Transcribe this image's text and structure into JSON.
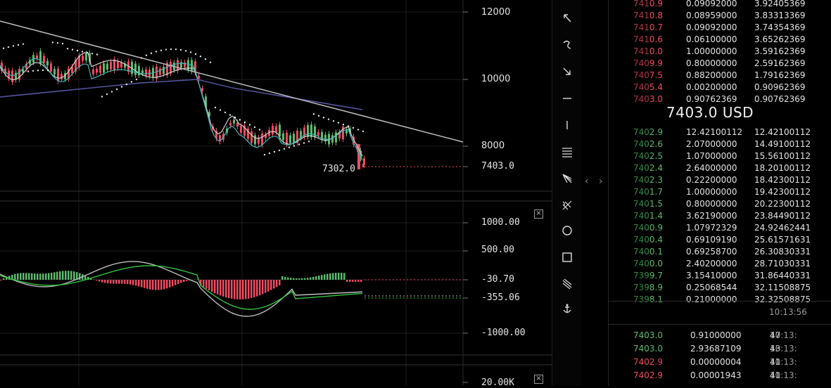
{
  "chart": {
    "price_axis": [
      "12000",
      "10000",
      "8000"
    ],
    "current_price_label": "7403.0",
    "low_label": "7302.0",
    "osc_axis": [
      "1000.00",
      "500.00",
      "-30.70",
      "-355.06",
      "-1000.00"
    ],
    "volume_axis": [
      "20.00K"
    ],
    "colors": {
      "up": "#5dba6f",
      "down": "#ef4a62",
      "trendline": "#bdbdbd",
      "ma_fast": "#3fb6b6",
      "ma_slow": "#5a5aa8"
    }
  },
  "toolbar": {
    "tools": [
      "cursor-arrow-icon",
      "curve-icon",
      "arrow-down-right-icon",
      "horizontal-line-icon",
      "vertical-line-icon",
      "fibonacci-icon",
      "fan-icon",
      "pitchfork-icon",
      "circle-icon",
      "rectangle-icon",
      "parallel-lines-icon",
      "anchor-icon"
    ]
  },
  "splitter": {
    "left": "‹",
    "right": "›"
  },
  "orderbook": {
    "asks": [
      {
        "prefix": "741",
        "suffix": "0.9",
        "amount": "0.09092000",
        "total": "3.92405369"
      },
      {
        "prefix": "741",
        "suffix": "0.8",
        "amount": "0.08959000",
        "total": "3.83313369"
      },
      {
        "prefix": "741",
        "suffix": "0.7",
        "amount": "0.09092000",
        "total": "3.74354369"
      },
      {
        "prefix": "741",
        "suffix": "0.6",
        "amount": "0.06100000",
        "total": "3.65262369"
      },
      {
        "prefix": "741",
        "suffix": "0.0",
        "amount": "1.00000000",
        "total": "3.59162369"
      },
      {
        "prefix": "740",
        "suffix": "9.9",
        "amount": "0.80000000",
        "total": "2.59162369"
      },
      {
        "prefix": "740",
        "suffix": "7.5",
        "amount": "0.88200000",
        "total": "1.79162369"
      },
      {
        "prefix": "740",
        "suffix": "5.4",
        "amount": "0.00200000",
        "total": "0.90962369"
      },
      {
        "prefix": "740",
        "suffix": "3.0",
        "amount": "0.90762369",
        "total": "0.90762369"
      }
    ],
    "mid_price": "7403.0 USD",
    "bids": [
      {
        "prefix": "740",
        "suffix": "2.9",
        "amount": "12.42100112",
        "total": "12.42100112"
      },
      {
        "prefix": "740",
        "suffix": "2.6",
        "amount": "2.07000000",
        "total": "14.49100112"
      },
      {
        "prefix": "740",
        "suffix": "2.5",
        "amount": "1.07000000",
        "total": "15.56100112"
      },
      {
        "prefix": "740",
        "suffix": "2.4",
        "amount": "2.64000000",
        "total": "18.20100112"
      },
      {
        "prefix": "740",
        "suffix": "2.3",
        "amount": "0.22200000",
        "total": "18.42300112"
      },
      {
        "prefix": "740",
        "suffix": "1.7",
        "amount": "1.00000000",
        "total": "19.42300112"
      },
      {
        "prefix": "740",
        "suffix": "1.5",
        "amount": "0.80000000",
        "total": "20.22300112"
      },
      {
        "prefix": "740",
        "suffix": "1.4",
        "amount": "3.62190000",
        "total": "23.84490112"
      },
      {
        "prefix": "740",
        "suffix": "0.9",
        "amount": "1.07972329",
        "total": "24.92462441"
      },
      {
        "prefix": "740",
        "suffix": "0.4",
        "amount": "0.69109190",
        "total": "25.61571631"
      },
      {
        "prefix": "740",
        "suffix": "0.1",
        "amount": "0.69258700",
        "total": "26.30830331"
      },
      {
        "prefix": "740",
        "suffix": "0.0",
        "amount": "2.40200000",
        "total": "28.71030331"
      },
      {
        "prefix": "739",
        "suffix": "9.7",
        "amount": "3.15410000",
        "total": "31.86440331"
      },
      {
        "prefix": "739",
        "suffix": "8.9",
        "amount": "0.25068544",
        "total": "32.11508875"
      },
      {
        "prefix": "739",
        "suffix": "8.1",
        "amount": "0.21000000",
        "total": "32.32508875"
      }
    ],
    "time": "10:13:56",
    "trades": [
      {
        "side": "buy",
        "price": "7403.0",
        "amount": "0.91000000",
        "time_a": "10:13:",
        "time_b": "47"
      },
      {
        "side": "buy",
        "price": "7403.0",
        "amount": "2.93687109",
        "time_a": "10:13:",
        "time_b": "43"
      },
      {
        "side": "sell",
        "price": "7402.9",
        "amount": "0.00000004",
        "time_a": "10:13:",
        "time_b": "41"
      },
      {
        "side": "sell",
        "price": "7402.9",
        "amount": "0.00001943",
        "time_a": "10:13:",
        "time_b": "41"
      }
    ]
  }
}
